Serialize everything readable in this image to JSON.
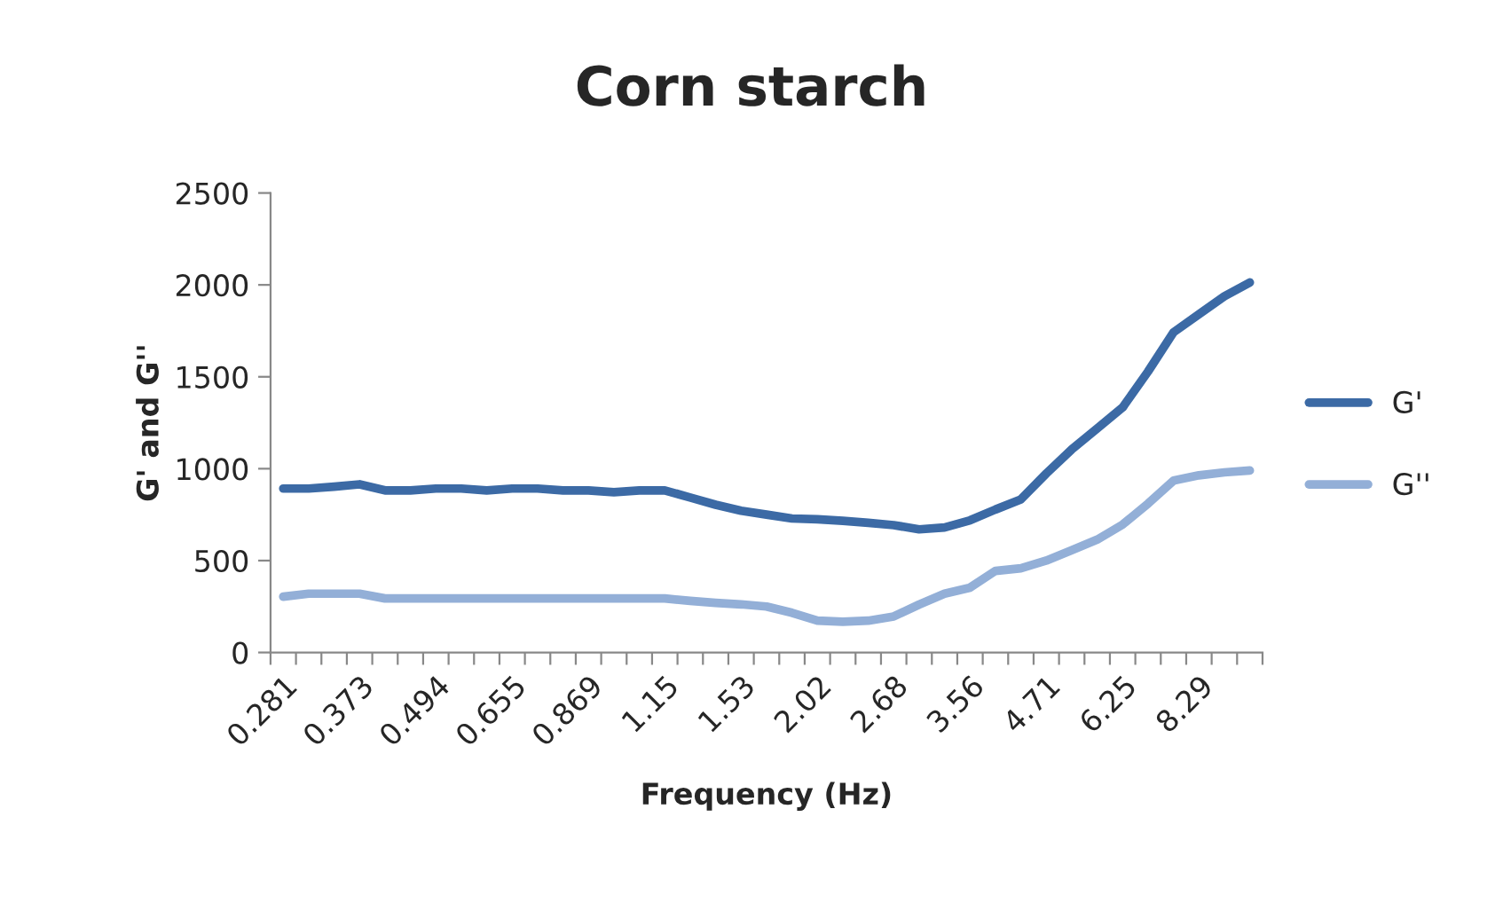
{
  "chart_data": {
    "type": "line",
    "title": "Corn starch",
    "xlabel": "Frequency (Hz)",
    "ylabel": "G' and G''",
    "categories": [
      "0.281",
      null,
      null,
      "0.373",
      null,
      null,
      "0.494",
      null,
      null,
      "0.655",
      null,
      null,
      "0.869",
      null,
      null,
      "1.15",
      null,
      null,
      "1.53",
      null,
      null,
      "2.02",
      null,
      null,
      "2.68",
      null,
      null,
      "3.56",
      null,
      null,
      "4.71",
      null,
      null,
      "6.25",
      null,
      null,
      "8.29",
      null,
      null
    ],
    "series": [
      {
        "name": "G'",
        "color": "#3c6aa5",
        "values": [
          892,
          892,
          902,
          915,
          882,
          882,
          892,
          892,
          882,
          892,
          892,
          882,
          882,
          872,
          882,
          882,
          843,
          804,
          771,
          750,
          729,
          725,
          716,
          706,
          693,
          670,
          680,
          719,
          778,
          833,
          974,
          1105,
          1219,
          1333,
          1529,
          1742,
          1840,
          1938,
          2013
        ]
      },
      {
        "name": "G''",
        "color": "#93afd7",
        "values": [
          304,
          320,
          320,
          320,
          294,
          294,
          294,
          294,
          294,
          294,
          294,
          294,
          294,
          294,
          294,
          294,
          281,
          270,
          262,
          250,
          216,
          173,
          167,
          173,
          196,
          261,
          320,
          353,
          444,
          458,
          500,
          556,
          614,
          696,
          810,
          935,
          964,
          980,
          990
        ]
      }
    ],
    "ylim": [
      0,
      2500
    ],
    "yticks": [
      0,
      500,
      1000,
      1500,
      2000,
      2500
    ],
    "grid": false,
    "legend": "right",
    "marker": "none",
    "line_style": "solid"
  }
}
